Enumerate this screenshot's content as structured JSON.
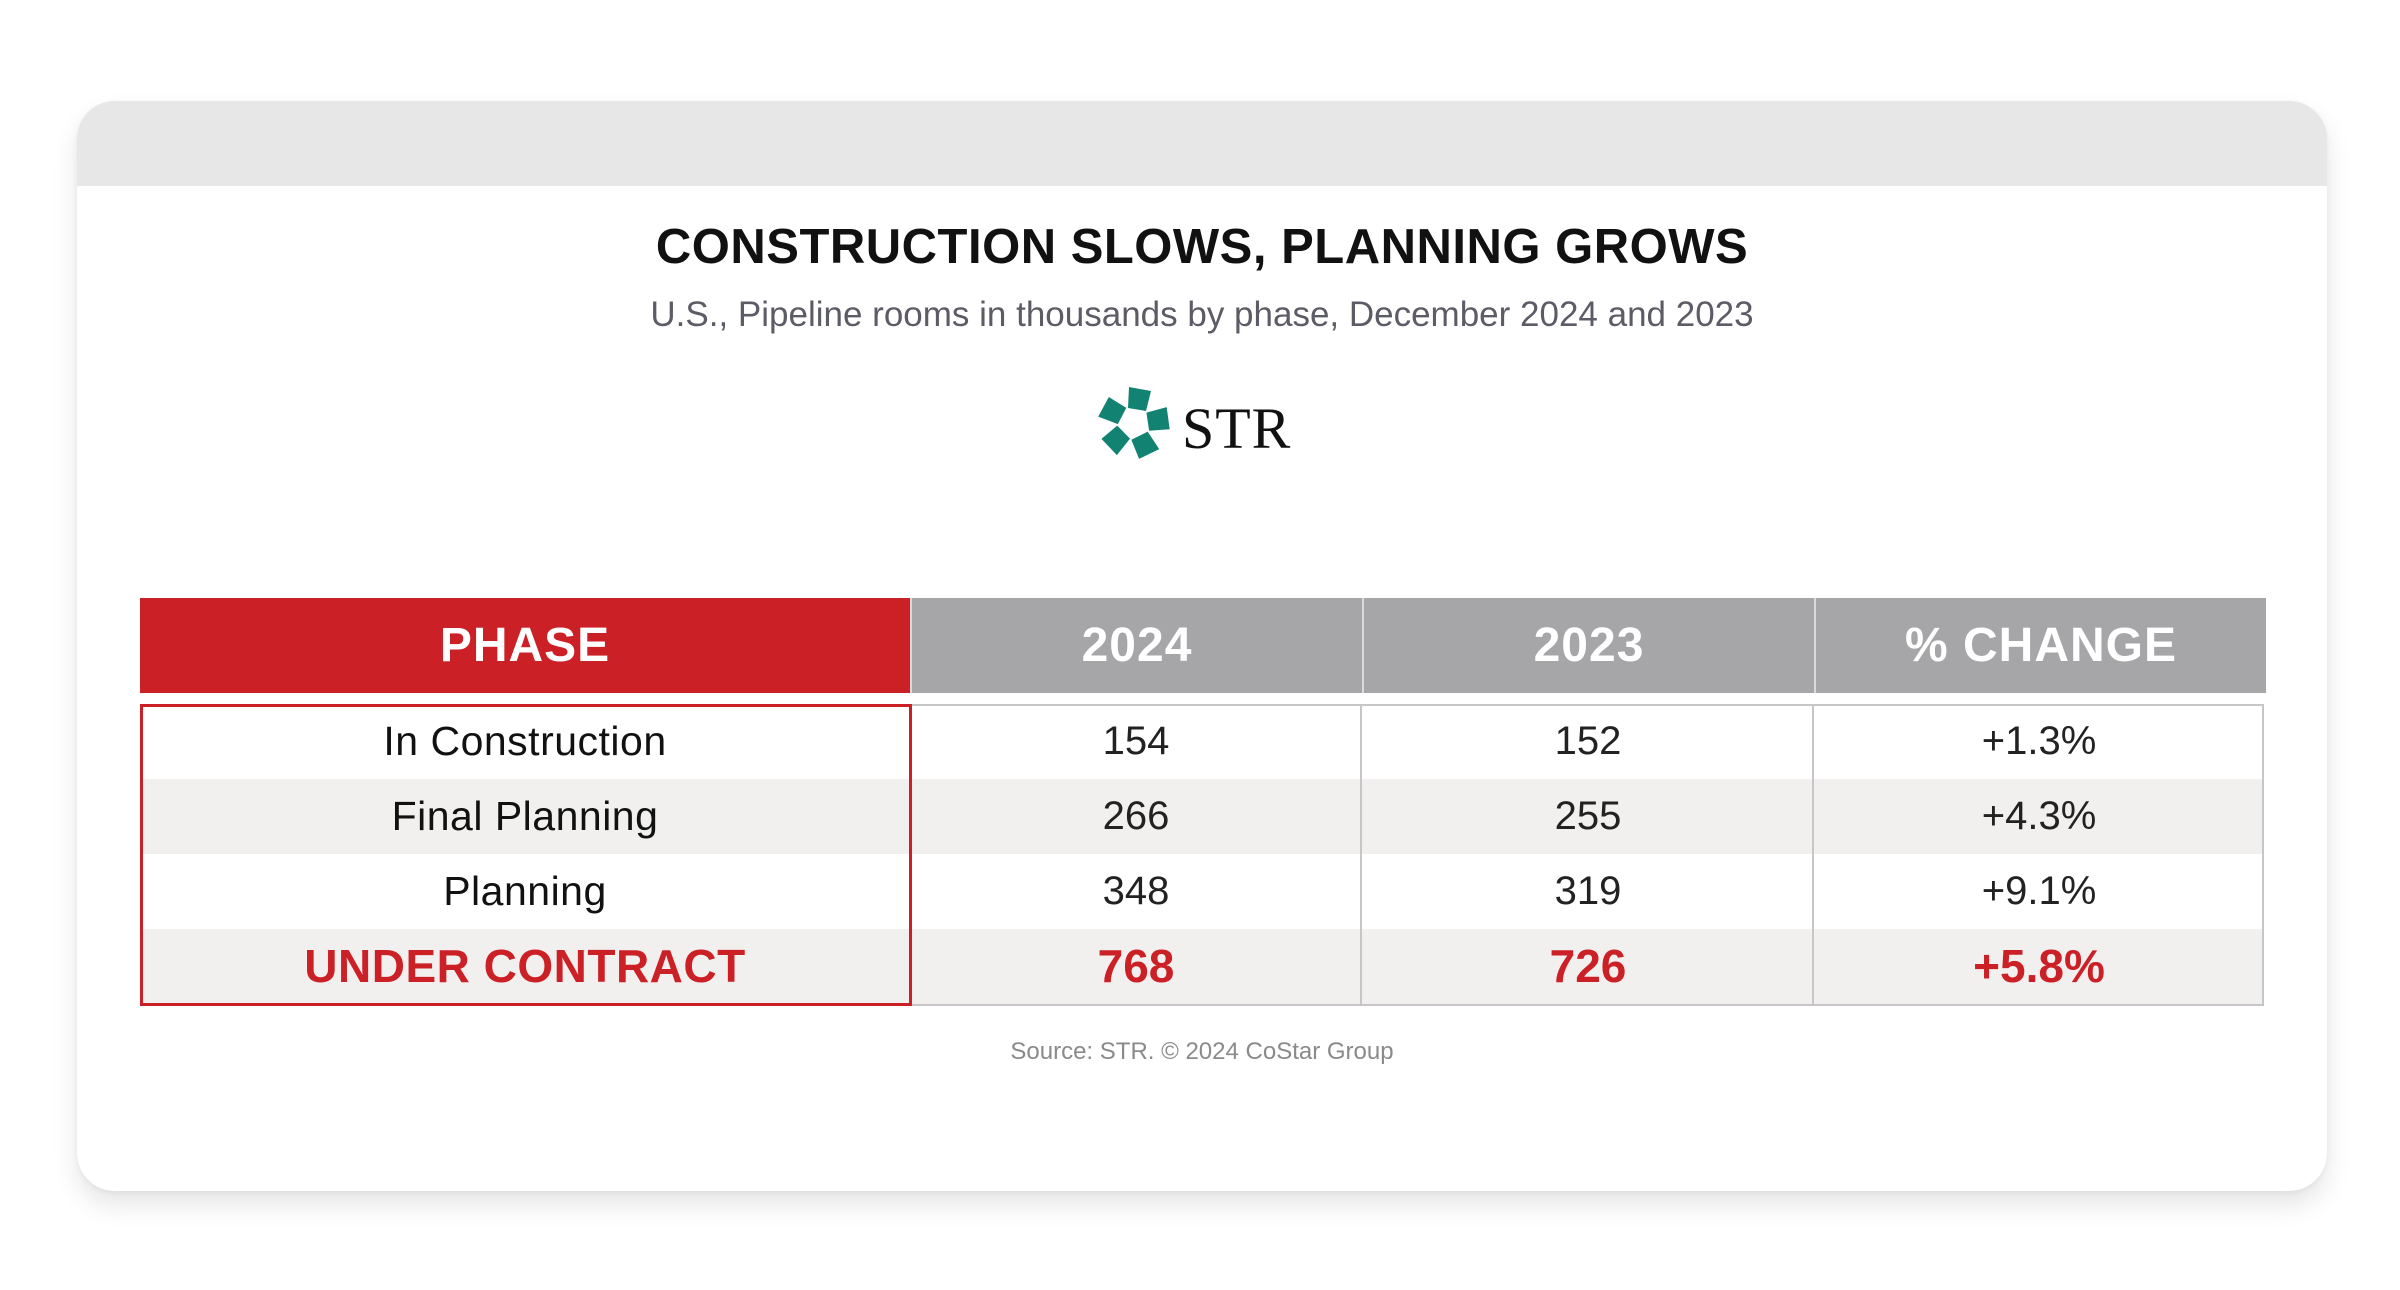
{
  "colors": {
    "accent_red": "#cc2027",
    "header_gray": "#a6a6a8",
    "logo_green": "#128372",
    "alt_row": "#f1f0ee"
  },
  "chart_data": {
    "type": "table",
    "title": "CONSTRUCTION SLOWS, PLANNING GROWS",
    "subtitle": "U.S., Pipeline rooms in thousands by phase, December 2024 and 2023",
    "logo_text": "STR",
    "columns": [
      "PHASE",
      "2024",
      "2023",
      "% CHANGE"
    ],
    "rows": [
      {
        "phase": "In Construction",
        "y2024": "154",
        "y2023": "152",
        "change": "+1.3%"
      },
      {
        "phase": "Final Planning",
        "y2024": "266",
        "y2023": "255",
        "change": "+4.3%"
      },
      {
        "phase": "Planning",
        "y2024": "348",
        "y2023": "319",
        "change": "+9.1%"
      },
      {
        "phase": "UNDER CONTRACT",
        "y2024": "768",
        "y2023": "726",
        "change": "+5.8%"
      }
    ],
    "source": "Source: STR. © 2024 CoStar Group"
  }
}
